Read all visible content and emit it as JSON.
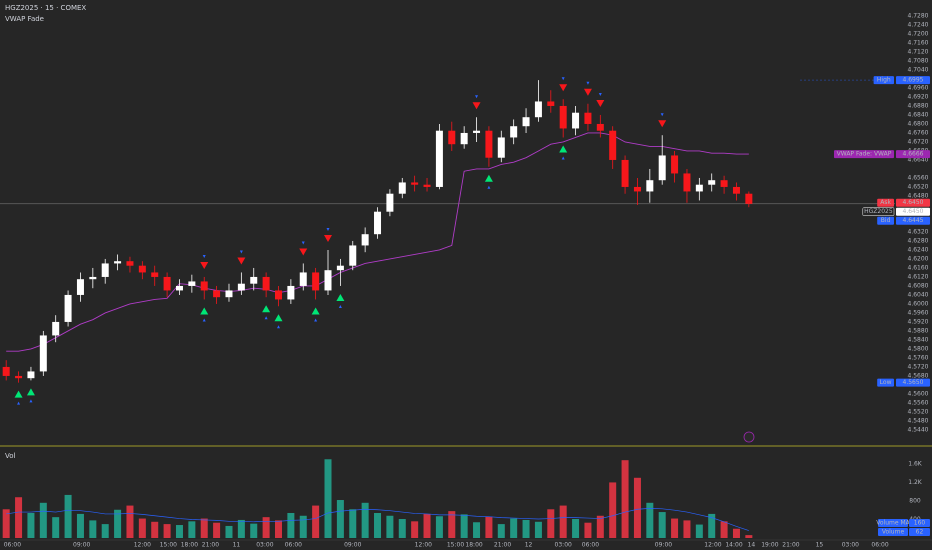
{
  "chart_data": {
    "type": "candlestick",
    "title": "HGZ2025 · 15 · COMEX",
    "indicator": "VWAP Fade",
    "volume_title": "Vol",
    "colors": {
      "up": "#ffffff",
      "down": "#f7171b",
      "vol_up": "#22ab94",
      "vol_down": "#f23645",
      "vwap": "#b03cc8",
      "volume_ma": "#2962ff",
      "buy": "#00e676",
      "sell": "#f7171b"
    },
    "ylim": [
      4.5373,
      4.7351
    ],
    "yticks": [
      {
        "value": 4.544,
        "label": "4.5440"
      },
      {
        "value": 4.548,
        "label": "4.5480"
      },
      {
        "value": 4.552,
        "label": "4.5520"
      },
      {
        "value": 4.556,
        "label": "4.5560"
      },
      {
        "value": 4.56,
        "label": "4.5600"
      },
      {
        "value": 4.564,
        "label": "4.5640"
      },
      {
        "value": 4.568,
        "label": "4.5680"
      },
      {
        "value": 4.572,
        "label": "4.5720"
      },
      {
        "value": 4.576,
        "label": "4.5760"
      },
      {
        "value": 4.58,
        "label": "4.5800"
      },
      {
        "value": 4.584,
        "label": "4.5840"
      },
      {
        "value": 4.588,
        "label": "4.5880"
      },
      {
        "value": 4.592,
        "label": "4.5920"
      },
      {
        "value": 4.596,
        "label": "4.5960"
      },
      {
        "value": 4.6,
        "label": "4.6000"
      },
      {
        "value": 4.604,
        "label": "4.6040"
      },
      {
        "value": 4.608,
        "label": "4.6080"
      },
      {
        "value": 4.612,
        "label": "4.6120"
      },
      {
        "value": 4.616,
        "label": "4.6160"
      },
      {
        "value": 4.62,
        "label": "4.6200"
      },
      {
        "value": 4.624,
        "label": "4.6240"
      },
      {
        "value": 4.628,
        "label": "4.6280"
      },
      {
        "value": 4.632,
        "label": "4.6320"
      },
      {
        "value": 4.636,
        "label": "4.6360"
      },
      {
        "value": 4.64,
        "label": "4.6400"
      },
      {
        "value": 4.648,
        "label": "4.6480"
      },
      {
        "value": 4.652,
        "label": "4.6520"
      },
      {
        "value": 4.656,
        "label": "4.6560"
      },
      {
        "value": 4.664,
        "label": "4.6640"
      },
      {
        "value": 4.668,
        "label": "4.6680"
      },
      {
        "value": 4.672,
        "label": "4.6720"
      },
      {
        "value": 4.676,
        "label": "4.6760"
      },
      {
        "value": 4.68,
        "label": "4.6800"
      },
      {
        "value": 4.684,
        "label": "4.6840"
      },
      {
        "value": 4.688,
        "label": "4.6880"
      },
      {
        "value": 4.692,
        "label": "4.6920"
      },
      {
        "value": 4.696,
        "label": "4.6960"
      },
      {
        "value": 4.704,
        "label": "4.7040"
      },
      {
        "value": 4.708,
        "label": "4.7080"
      },
      {
        "value": 4.712,
        "label": "4.7120"
      },
      {
        "value": 4.716,
        "label": "4.7160"
      },
      {
        "value": 4.72,
        "label": "4.7200"
      },
      {
        "value": 4.724,
        "label": "4.7240"
      },
      {
        "value": 4.728,
        "label": "4.7280"
      }
    ],
    "xlim": [
      -0.5,
      71
    ],
    "xticks": [
      {
        "value": 0.5,
        "label": "06:00"
      },
      {
        "value": 6.1,
        "label": "09:00"
      },
      {
        "value": 11,
        "label": "12:00"
      },
      {
        "value": 13.1,
        "label": "15:00"
      },
      {
        "value": 14.8,
        "label": "18:00"
      },
      {
        "value": 16.5,
        "label": "21:00"
      },
      {
        "value": 18.6,
        "label": "11"
      },
      {
        "value": 20.9,
        "label": "03:00"
      },
      {
        "value": 23.2,
        "label": "06:00"
      },
      {
        "value": 28,
        "label": "09:00"
      },
      {
        "value": 33.7,
        "label": "12:00"
      },
      {
        "value": 36.3,
        "label": "15:00"
      },
      {
        "value": 37.8,
        "label": "18:00"
      },
      {
        "value": 40.1,
        "label": "21:00"
      },
      {
        "value": 42.2,
        "label": "12"
      },
      {
        "value": 45,
        "label": "03:00"
      },
      {
        "value": 47.2,
        "label": "06:00"
      },
      {
        "value": 53.1,
        "label": "09:00"
      },
      {
        "value": 57.1,
        "label": "12:00"
      },
      {
        "value": 58.8,
        "label": "14:00"
      },
      {
        "value": 60.2,
        "label": "14"
      },
      {
        "value": 61.7,
        "label": "19:00"
      },
      {
        "value": 63.4,
        "label": "21:00"
      },
      {
        "value": 65.7,
        "label": "15"
      },
      {
        "value": 68.2,
        "label": "03:00"
      },
      {
        "value": 70.6,
        "label": "06:00"
      }
    ],
    "ohlc": [
      [
        4.572,
        4.575,
        4.566,
        4.568
      ],
      [
        4.568,
        4.57,
        4.565,
        4.567
      ],
      [
        4.567,
        4.572,
        4.566,
        4.57
      ],
      [
        4.57,
        4.588,
        4.568,
        4.586
      ],
      [
        4.586,
        4.595,
        4.583,
        4.592
      ],
      [
        4.592,
        4.606,
        4.59,
        4.604
      ],
      [
        4.604,
        4.614,
        4.601,
        4.611
      ],
      [
        4.611,
        4.616,
        4.607,
        4.612
      ],
      [
        4.612,
        4.62,
        4.609,
        4.618
      ],
      [
        4.618,
        4.622,
        4.615,
        4.619
      ],
      [
        4.619,
        4.621,
        4.614,
        4.617
      ],
      [
        4.617,
        4.619,
        4.611,
        4.614
      ],
      [
        4.614,
        4.617,
        4.608,
        4.612
      ],
      [
        4.612,
        4.614,
        4.603,
        4.606
      ],
      [
        4.606,
        4.611,
        4.604,
        4.608
      ],
      [
        4.608,
        4.613,
        4.605,
        4.61
      ],
      [
        4.61,
        4.612,
        4.602,
        4.606
      ],
      [
        4.606,
        4.608,
        4.6,
        4.603
      ],
      [
        4.603,
        4.609,
        4.601,
        4.606
      ],
      [
        4.606,
        4.614,
        4.604,
        4.609
      ],
      [
        4.609,
        4.616,
        4.606,
        4.612
      ],
      [
        4.612,
        4.614,
        4.603,
        4.606
      ],
      [
        4.606,
        4.608,
        4.599,
        4.602
      ],
      [
        4.602,
        4.611,
        4.6,
        4.608
      ],
      [
        4.608,
        4.618,
        4.606,
        4.614
      ],
      [
        4.614,
        4.616,
        4.602,
        4.606
      ],
      [
        4.606,
        4.624,
        4.604,
        4.615
      ],
      [
        4.615,
        4.62,
        4.608,
        4.617
      ],
      [
        4.617,
        4.628,
        4.615,
        4.626
      ],
      [
        4.626,
        4.634,
        4.623,
        4.631
      ],
      [
        4.631,
        4.643,
        4.629,
        4.641
      ],
      [
        4.641,
        4.651,
        4.639,
        4.649
      ],
      [
        4.649,
        4.656,
        4.647,
        4.654
      ],
      [
        4.654,
        4.657,
        4.65,
        4.653
      ],
      [
        4.653,
        4.656,
        4.65,
        4.652
      ],
      [
        4.652,
        4.68,
        4.651,
        4.677
      ],
      [
        4.677,
        4.681,
        4.668,
        4.671
      ],
      [
        4.671,
        4.679,
        4.669,
        4.676
      ],
      [
        4.676,
        4.683,
        4.672,
        4.677
      ],
      [
        4.677,
        4.679,
        4.661,
        4.665
      ],
      [
        4.665,
        4.677,
        4.663,
        4.674
      ],
      [
        4.674,
        4.682,
        4.671,
        4.679
      ],
      [
        4.679,
        4.687,
        4.676,
        4.683
      ],
      [
        4.683,
        4.6995,
        4.681,
        4.69
      ],
      [
        4.69,
        4.695,
        4.685,
        4.688
      ],
      [
        4.688,
        4.691,
        4.674,
        4.678
      ],
      [
        4.678,
        4.688,
        4.675,
        4.685
      ],
      [
        4.685,
        4.689,
        4.677,
        4.68
      ],
      [
        4.68,
        4.684,
        4.674,
        4.677
      ],
      [
        4.677,
        4.679,
        4.66,
        4.664
      ],
      [
        4.664,
        4.666,
        4.649,
        4.652
      ],
      [
        4.652,
        4.656,
        4.644,
        4.65
      ],
      [
        4.65,
        4.66,
        4.645,
        4.655
      ],
      [
        4.655,
        4.675,
        4.653,
        4.666
      ],
      [
        4.666,
        4.668,
        4.654,
        4.658
      ],
      [
        4.658,
        4.66,
        4.645,
        4.65
      ],
      [
        4.65,
        4.656,
        4.646,
        4.653
      ],
      [
        4.653,
        4.658,
        4.65,
        4.655
      ],
      [
        4.655,
        4.657,
        4.649,
        4.652
      ],
      [
        4.652,
        4.654,
        4.646,
        4.649
      ],
      [
        4.649,
        4.65,
        4.643,
        4.6445
      ]
    ],
    "vwap": [
      4.579,
      4.579,
      4.58,
      4.582,
      4.585,
      4.588,
      4.591,
      4.593,
      4.596,
      4.598,
      4.6,
      4.601,
      4.602,
      4.6025,
      4.609,
      4.6085,
      4.607,
      4.606,
      4.6055,
      4.606,
      4.607,
      4.6065,
      4.605,
      4.606,
      4.608,
      4.608,
      4.611,
      4.614,
      4.616,
      4.618,
      4.619,
      4.62,
      4.621,
      4.622,
      4.623,
      4.624,
      4.626,
      4.659,
      4.66,
      4.66,
      4.662,
      4.663,
      4.665,
      4.668,
      4.671,
      4.672,
      4.674,
      4.676,
      4.676,
      4.675,
      4.672,
      4.671,
      4.67,
      4.67,
      4.669,
      4.668,
      4.668,
      4.667,
      4.667,
      4.6666,
      4.6666
    ],
    "signals": {
      "buy": [
        1,
        2,
        16,
        21,
        22,
        25,
        27,
        39,
        45
      ],
      "sell": [
        16,
        19,
        24,
        26,
        38,
        45,
        47,
        48,
        53
      ]
    },
    "volume": [
      620,
      880,
      540,
      760,
      450,
      930,
      520,
      380,
      300,
      610,
      700,
      420,
      350,
      300,
      280,
      360,
      420,
      330,
      260,
      390,
      310,
      450,
      380,
      540,
      480,
      700,
      1700,
      820,
      620,
      760,
      540,
      480,
      410,
      360,
      520,
      470,
      580,
      510,
      340,
      460,
      300,
      420,
      390,
      350,
      620,
      700,
      410,
      330,
      480,
      1200,
      1680,
      1300,
      760,
      560,
      420,
      380,
      290,
      520,
      360,
      200,
      62
    ],
    "volume_ma": [
      520,
      560,
      560,
      580,
      560,
      600,
      590,
      560,
      520,
      520,
      530,
      510,
      480,
      450,
      420,
      400,
      390,
      380,
      360,
      360,
      350,
      360,
      360,
      380,
      390,
      420,
      540,
      580,
      600,
      620,
      610,
      590,
      560,
      530,
      520,
      500,
      500,
      490,
      470,
      460,
      440,
      430,
      420,
      410,
      420,
      440,
      440,
      430,
      420,
      480,
      560,
      620,
      640,
      630,
      600,
      560,
      500,
      440,
      350,
      250,
      160
    ],
    "volume_ylim": [
      0,
      1900
    ],
    "volume_yticks": [
      400,
      800,
      {
        "value": 1200,
        "label": "1.2K"
      },
      {
        "value": 1600,
        "label": "1.6K"
      }
    ],
    "volume_labels": [
      "Volume MA",
      "Volume"
    ],
    "price_labels": [
      {
        "name": "High",
        "value": 4.6995,
        "label": "4.6995",
        "color": "#2962ff"
      },
      {
        "name": "VWAP Fade: VWAP",
        "value": 4.6666,
        "label": "4.6666",
        "color": "#9c27b0"
      },
      {
        "name": "Ask",
        "value": 4.645,
        "label": "4.6450",
        "color": "#f23645"
      },
      {
        "name": "HGZ2025",
        "value": 4.645,
        "label": "4.6450",
        "color": "#ffffff"
      },
      {
        "name": "Bid",
        "value": 4.6445,
        "label": "4.6445",
        "color": "#2962ff"
      },
      {
        "name": "Low",
        "value": 4.565,
        "label": "4.5650",
        "color": "#2962ff"
      }
    ]
  }
}
